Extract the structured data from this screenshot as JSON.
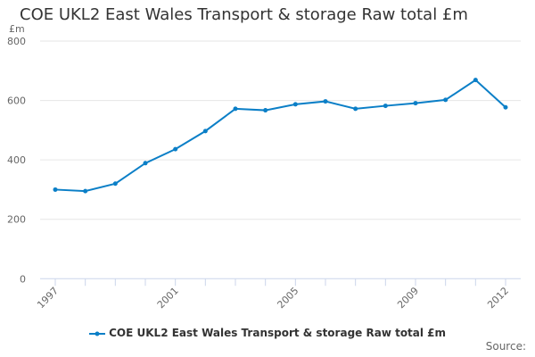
{
  "chart_data": {
    "type": "line",
    "title": "COE UKL2 East Wales Transport & storage Raw total £m",
    "ylabel": "£m",
    "xlabel": "",
    "x": [
      1997,
      1998,
      1999,
      2000,
      2001,
      2002,
      2003,
      2004,
      2005,
      2006,
      2007,
      2008,
      2009,
      2010,
      2011,
      2012
    ],
    "series": [
      {
        "name": "COE UKL2 East Wales Transport & storage Raw total £m",
        "values": [
          300,
          295,
          320,
          389,
          436,
          497,
          572,
          567,
          587,
          597,
          572,
          582,
          591,
          602,
          669,
          577
        ]
      }
    ],
    "ylim": [
      0,
      800
    ],
    "yticks": [
      "0",
      "200",
      "400",
      "600",
      "800"
    ],
    "xticks": [
      "1997",
      "2001",
      "2005",
      "2009",
      "2012"
    ],
    "grid": true,
    "legend": "bottom",
    "color": "#0b7fc7",
    "source_label": "Source:"
  }
}
